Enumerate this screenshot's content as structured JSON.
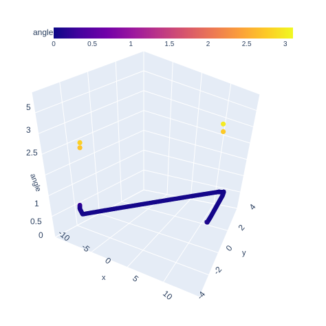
{
  "chart_data": {
    "type": "scatter3d",
    "title": "",
    "colorbar": {
      "title": "angle",
      "range": [
        0,
        3.1
      ],
      "ticks": [
        "0",
        "0.5",
        "1",
        "1.5",
        "2",
        "2.5",
        "3"
      ],
      "colorscale": [
        "#0d0887",
        "#46039f",
        "#7201a8",
        "#9c179e",
        "#bd3786",
        "#d8576b",
        "#ed7953",
        "#fb9f3a",
        "#fdca26",
        "#f0f921"
      ]
    },
    "axes": {
      "x": {
        "title": "x",
        "range": [
          -10,
          10
        ],
        "ticks": [
          "-10",
          "-5",
          "0",
          "5",
          "10"
        ]
      },
      "y": {
        "title": "y",
        "range": [
          -4,
          4
        ],
        "ticks": [
          "-4",
          "-2",
          "0",
          "2",
          "4"
        ]
      },
      "z": {
        "title": "angle",
        "ticks": [
          "0",
          "0.5",
          "1",
          "2.5",
          "3",
          "5"
        ]
      }
    },
    "grid": true,
    "background": "#e5ecf6",
    "series": [
      {
        "points": [
          {
            "x": -9.5,
            "y": 3.6,
            "z": 0.6,
            "c": 0.3
          },
          {
            "x": -9.5,
            "y": 3.6,
            "z": 0.45,
            "c": 0.1
          },
          {
            "x": -9.0,
            "y": 3.2,
            "z": 0.3,
            "c": 0.05
          },
          {
            "x": -5.0,
            "y": 3.4,
            "z": 0.3,
            "c": 0.05
          },
          {
            "x": 0.0,
            "y": 3.6,
            "z": 0.3,
            "c": 0.05
          },
          {
            "x": 5.0,
            "y": 3.8,
            "z": 0.3,
            "c": 0.05
          },
          {
            "x": 8.5,
            "y": 3.9,
            "z": 0.3,
            "c": 0.05
          },
          {
            "x": 9.2,
            "y": 3.7,
            "z": 0.3,
            "c": 0.05
          },
          {
            "x": 9.3,
            "y": 3.5,
            "z": 0.35,
            "c": 0.05
          },
          {
            "x": 9.3,
            "y": 3.0,
            "z": 0.3,
            "c": 0.05
          },
          {
            "x": 9.2,
            "y": 1.0,
            "z": 0.3,
            "c": 0.05
          },
          {
            "x": 9.1,
            "y": -1.0,
            "z": 0.3,
            "c": 0.05
          },
          {
            "x": 9.0,
            "y": -2.0,
            "z": 0.3,
            "c": 0.05
          },
          {
            "x": 9.0,
            "y": -2.2,
            "z": 0.35,
            "c": 0.1
          }
        ]
      },
      {
        "points": [
          {
            "x": -9.5,
            "y": 3.6,
            "z": 3.05,
            "c": 2.8
          },
          {
            "x": -9.5,
            "y": 3.6,
            "z": 2.85,
            "c": 2.7
          },
          {
            "x": 9.2,
            "y": 3.6,
            "z": 3.0,
            "c": 3.0
          },
          {
            "x": 9.2,
            "y": 3.6,
            "z": 2.7,
            "c": 2.75
          }
        ]
      }
    ]
  }
}
